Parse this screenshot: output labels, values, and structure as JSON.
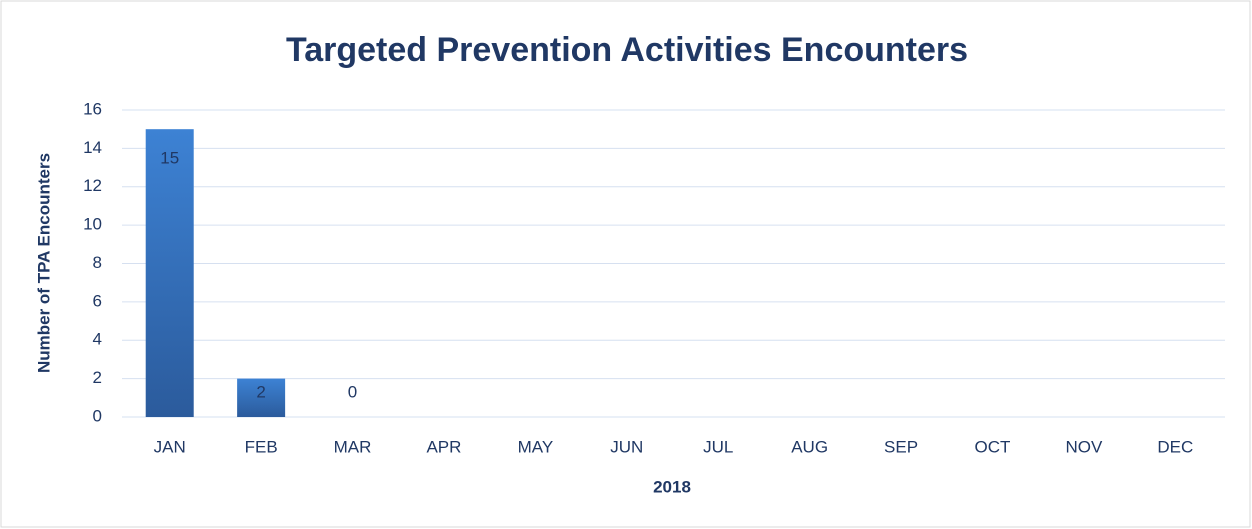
{
  "chart_data": {
    "type": "bar",
    "title": "Targeted Prevention Activities Encounters",
    "x_label": "2018",
    "y_label": "Number of TPA Encounters",
    "categories": [
      "JAN",
      "FEB",
      "MAR",
      "APR",
      "MAY",
      "JUN",
      "JUL",
      "AUG",
      "SEP",
      "OCT",
      "NOV",
      "DEC"
    ],
    "values": [
      15,
      2,
      0,
      null,
      null,
      null,
      null,
      null,
      null,
      null,
      null,
      null
    ],
    "color": "#3a7bc8",
    "ylim": [
      0,
      16
    ],
    "yticks": [
      0,
      2,
      4,
      6,
      8,
      10,
      12,
      14,
      16
    ],
    "grid": true
  }
}
